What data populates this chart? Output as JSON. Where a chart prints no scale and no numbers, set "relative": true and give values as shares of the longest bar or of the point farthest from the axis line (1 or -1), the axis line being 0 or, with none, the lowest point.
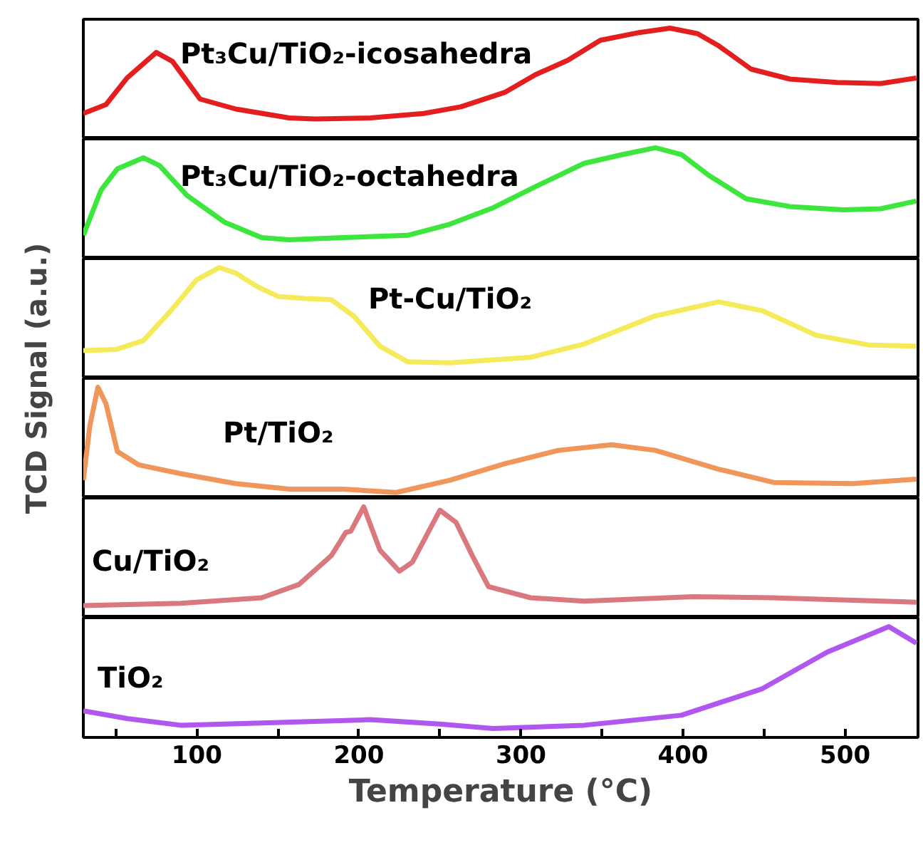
{
  "chart_data": [
    {
      "type": "line",
      "relative": true,
      "xlim": [
        30,
        545
      ],
      "tick_labels": false,
      "grid": false,
      "series": [
        {
          "name": "Pt₃Cu/TiO₂-icosahedra",
          "color": "#e31e1e",
          "x": [
            30,
            44,
            57,
            75,
            85,
            102,
            124,
            157,
            173,
            207,
            240,
            263,
            290,
            309,
            329,
            349,
            373,
            392,
            409,
            422,
            442,
            466,
            495,
            522,
            544
          ],
          "values": [
            0.23,
            0.31,
            0.55,
            0.78,
            0.7,
            0.36,
            0.27,
            0.19,
            0.18,
            0.19,
            0.23,
            0.29,
            0.42,
            0.58,
            0.71,
            0.89,
            0.96,
            1,
            0.95,
            0.84,
            0.63,
            0.54,
            0.51,
            0.5,
            0.55
          ]
        }
      ]
    },
    {
      "type": "line",
      "relative": true,
      "xlim": [
        30,
        545
      ],
      "tick_labels": false,
      "grid": false,
      "series": [
        {
          "name": "Pt₃Cu/TiO₂-octahedra",
          "color": "#3ce63c",
          "x": [
            30,
            41,
            51,
            67,
            77,
            94,
            117,
            140,
            157,
            190,
            230,
            256,
            283,
            309,
            339,
            363,
            383,
            399,
            416,
            439,
            466,
            499,
            522,
            544
          ],
          "values": [
            0.21,
            0.62,
            0.81,
            0.91,
            0.84,
            0.57,
            0.33,
            0.19,
            0.17,
            0.19,
            0.21,
            0.31,
            0.46,
            0.65,
            0.86,
            0.94,
            1,
            0.94,
            0.75,
            0.54,
            0.47,
            0.44,
            0.45,
            0.52
          ]
        }
      ]
    },
    {
      "type": "line",
      "relative": true,
      "xlim": [
        30,
        545
      ],
      "tick_labels": false,
      "grid": false,
      "series": [
        {
          "name": "Pt-Cu/TiO₂",
          "color": "#f5ea5a",
          "x": [
            30,
            50,
            67,
            84,
            100,
            114,
            124,
            137,
            150,
            167,
            183,
            197,
            213,
            230,
            256,
            306,
            339,
            382,
            422,
            449,
            482,
            515,
            544
          ],
          "values": [
            0.25,
            0.26,
            0.34,
            0.61,
            0.89,
            1,
            0.95,
            0.83,
            0.74,
            0.72,
            0.71,
            0.56,
            0.29,
            0.15,
            0.14,
            0.19,
            0.31,
            0.56,
            0.69,
            0.61,
            0.39,
            0.3,
            0.29
          ]
        }
      ]
    },
    {
      "type": "line",
      "relative": true,
      "xlim": [
        30,
        545
      ],
      "tick_labels": false,
      "grid": false,
      "ylabel": "TCD Signal (a.u.)",
      "series": [
        {
          "name": "Pt/TiO₂",
          "color": "#f0965a",
          "x": [
            30,
            34,
            39,
            44,
            51,
            64,
            90,
            124,
            157,
            190,
            223,
            256,
            290,
            323,
            356,
            383,
            422,
            456,
            505,
            544
          ],
          "values": [
            0.16,
            0.65,
            1,
            0.85,
            0.42,
            0.3,
            0.22,
            0.13,
            0.08,
            0.08,
            0.05,
            0.16,
            0.31,
            0.43,
            0.48,
            0.43,
            0.26,
            0.14,
            0.13,
            0.17
          ]
        }
      ]
    },
    {
      "type": "line",
      "relative": true,
      "xlim": [
        30,
        545
      ],
      "tick_labels": false,
      "grid": false,
      "series": [
        {
          "name": "Cu/TiO₂",
          "color": "#d9797f",
          "x": [
            30,
            90,
            140,
            163,
            183,
            192,
            195,
            203,
            213,
            225,
            233,
            250,
            260,
            270,
            280,
            306,
            339,
            406,
            455,
            544
          ],
          "values": [
            0.11,
            0.13,
            0.18,
            0.3,
            0.56,
            0.77,
            0.78,
            1,
            0.61,
            0.42,
            0.5,
            0.97,
            0.86,
            0.56,
            0.28,
            0.18,
            0.15,
            0.19,
            0.18,
            0.14
          ]
        }
      ]
    },
    {
      "type": "line",
      "relative": true,
      "xlim": [
        30,
        545
      ],
      "tick_labels": "x",
      "grid": false,
      "xlabel": "Temperature (°C)",
      "xticks": [
        {
          "value": 50,
          "label": null
        },
        100,
        {
          "value": 150,
          "label": null
        },
        200,
        {
          "value": 250,
          "label": null
        },
        300,
        {
          "value": 350,
          "label": null
        },
        400,
        {
          "value": 450,
          "label": null
        },
        500
      ],
      "series": [
        {
          "name": "TiO₂",
          "color": "#b057f0",
          "x": [
            30,
            57,
            90,
            140,
            207,
            250,
            283,
            339,
            399,
            449,
            489,
            527,
            544
          ],
          "values": [
            0.24,
            0.17,
            0.11,
            0.13,
            0.16,
            0.12,
            0.08,
            0.11,
            0.2,
            0.44,
            0.77,
            1,
            0.85
          ]
        }
      ]
    }
  ]
}
